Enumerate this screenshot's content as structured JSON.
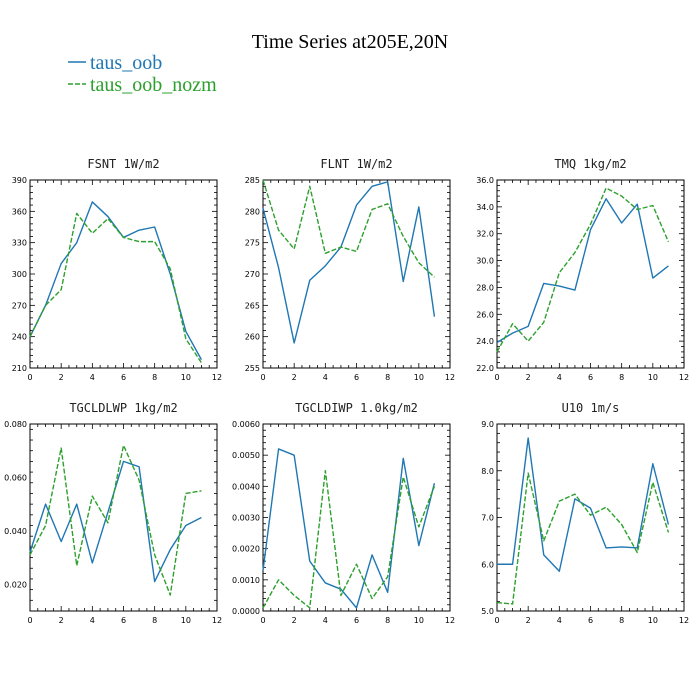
{
  "title": "Time Series at205E,20N",
  "legend": [
    {
      "name": "taus_oob",
      "color": "#1f77b4",
      "dash": "solid"
    },
    {
      "name": "taus_oob_nozm",
      "color": "#2ca02c",
      "dash": "dashed"
    }
  ],
  "chart_data": [
    {
      "type": "line",
      "title": "FSNT   1W/m2",
      "x": [
        0,
        1,
        2,
        3,
        4,
        5,
        6,
        7,
        8,
        9,
        10,
        11
      ],
      "xlim": [
        0,
        12
      ],
      "xticks": [
        0,
        2,
        4,
        6,
        8,
        10,
        12
      ],
      "ylim": [
        210,
        390
      ],
      "yticks": [
        210,
        240,
        270,
        300,
        330,
        360,
        390
      ],
      "ytick_labels": [
        "210",
        "240",
        "270",
        "300",
        "330",
        "360",
        "390"
      ],
      "series": [
        {
          "name": "taus_oob",
          "values": [
            240,
            270,
            310,
            330,
            369,
            355,
            335,
            342,
            345,
            300,
            245,
            218
          ]
        },
        {
          "name": "taus_oob_nozm",
          "values": [
            240,
            270,
            285,
            358,
            339,
            353,
            335,
            331,
            331,
            305,
            238,
            215
          ]
        }
      ]
    },
    {
      "type": "line",
      "title": "FLNT   1W/m2",
      "x": [
        0,
        1,
        2,
        3,
        4,
        5,
        6,
        7,
        8,
        9,
        10,
        11
      ],
      "xlim": [
        0,
        12
      ],
      "xticks": [
        0,
        2,
        4,
        6,
        8,
        10,
        12
      ],
      "ylim": [
        255,
        285
      ],
      "yticks": [
        255,
        260,
        265,
        270,
        275,
        280,
        285
      ],
      "ytick_labels": [
        "255",
        "260",
        "265",
        "270",
        "275",
        "280",
        "285"
      ],
      "series": [
        {
          "name": "taus_oob",
          "values": [
            280.5,
            271,
            259,
            269,
            271.3,
            274.3,
            281,
            284,
            284.7,
            268.8,
            280.7,
            263.2
          ]
        },
        {
          "name": "taus_oob_nozm",
          "values": [
            285,
            277,
            274,
            284,
            273.3,
            274.3,
            273.6,
            280.3,
            281.2,
            276,
            271.8,
            269.5
          ]
        }
      ]
    },
    {
      "type": "line",
      "title": "TMQ   1kg/m2",
      "x": [
        0,
        1,
        2,
        3,
        4,
        5,
        6,
        7,
        8,
        9,
        10,
        11
      ],
      "xlim": [
        0,
        12
      ],
      "xticks": [
        0,
        2,
        4,
        6,
        8,
        10,
        12
      ],
      "ylim": [
        22,
        36
      ],
      "yticks": [
        22,
        24,
        26,
        28,
        30,
        32,
        34,
        36
      ],
      "ytick_labels": [
        "22.0",
        "24.0",
        "26.0",
        "28.0",
        "30.0",
        "32.0",
        "34.0",
        "36.0"
      ],
      "series": [
        {
          "name": "taus_oob",
          "values": [
            23.9,
            24.6,
            25.1,
            28.3,
            28.1,
            27.8,
            32.3,
            34.6,
            32.8,
            34.2,
            28.7,
            29.6
          ]
        },
        {
          "name": "taus_oob_nozm",
          "values": [
            23.2,
            25.3,
            24.0,
            25.4,
            29.1,
            30.6,
            32.7,
            35.4,
            34.8,
            33.8,
            34.1,
            31.4
          ]
        }
      ]
    },
    {
      "type": "line",
      "title": "TGCLDLWP   1kg/m2",
      "x": [
        0,
        1,
        2,
        3,
        4,
        5,
        6,
        7,
        8,
        9,
        10,
        11
      ],
      "xlim": [
        0,
        12
      ],
      "xticks": [
        0,
        2,
        4,
        6,
        8,
        10,
        12
      ],
      "ylim": [
        0.01,
        0.08
      ],
      "yticks": [
        0.02,
        0.04,
        0.06,
        0.08
      ],
      "ytick_labels": [
        "0.020",
        "0.040",
        "0.060",
        "0.080"
      ],
      "series": [
        {
          "name": "taus_oob",
          "values": [
            0.032,
            0.05,
            0.036,
            0.05,
            0.028,
            0.047,
            0.066,
            0.064,
            0.021,
            0.033,
            0.042,
            0.045
          ]
        },
        {
          "name": "taus_oob_nozm",
          "values": [
            0.031,
            0.042,
            0.071,
            0.027,
            0.053,
            0.043,
            0.072,
            0.059,
            0.031,
            0.016,
            0.054,
            0.055
          ]
        }
      ]
    },
    {
      "type": "line",
      "title": "TGCLDIWP   1.0kg/m2",
      "x": [
        0,
        1,
        2,
        3,
        4,
        5,
        6,
        7,
        8,
        9,
        10,
        11
      ],
      "xlim": [
        0,
        12
      ],
      "xticks": [
        0,
        2,
        4,
        6,
        8,
        10,
        12
      ],
      "ylim": [
        0,
        0.006
      ],
      "yticks": [
        0,
        0.001,
        0.002,
        0.003,
        0.004,
        0.005,
        0.006
      ],
      "ytick_labels": [
        "0.0000",
        "0.0010",
        "0.0020",
        "0.0030",
        "0.0040",
        "0.0050",
        "0.0060"
      ],
      "series": [
        {
          "name": "taus_oob",
          "values": [
            0.0013,
            0.0052,
            0.005,
            0.0016,
            0.0009,
            0.0007,
            0.0001,
            0.0018,
            0.0006,
            0.0049,
            0.0021,
            0.0041
          ]
        },
        {
          "name": "taus_oob_nozm",
          "values": [
            0.0001,
            0.001,
            0.0005,
            0.0001,
            0.0045,
            0.0005,
            0.0015,
            0.0004,
            0.0011,
            0.0043,
            0.0027,
            0.004
          ]
        }
      ]
    },
    {
      "type": "line",
      "title": "U10   1m/s",
      "x": [
        0,
        1,
        2,
        3,
        4,
        5,
        6,
        7,
        8,
        9,
        10,
        11
      ],
      "xlim": [
        0,
        12
      ],
      "xticks": [
        0,
        2,
        4,
        6,
        8,
        10,
        12
      ],
      "ylim": [
        5,
        9
      ],
      "yticks": [
        5,
        6,
        7,
        8,
        9
      ],
      "ytick_labels": [
        "5.0",
        "6.0",
        "7.0",
        "8.0",
        "9.0"
      ],
      "series": [
        {
          "name": "taus_oob",
          "values": [
            6.0,
            6.0,
            8.7,
            6.2,
            5.85,
            7.4,
            7.2,
            6.35,
            6.37,
            6.35,
            8.15,
            6.85
          ]
        },
        {
          "name": "taus_oob_nozm",
          "values": [
            5.18,
            5.15,
            7.95,
            6.5,
            7.35,
            7.5,
            7.05,
            7.22,
            6.85,
            6.25,
            7.75,
            6.68
          ]
        }
      ]
    }
  ]
}
